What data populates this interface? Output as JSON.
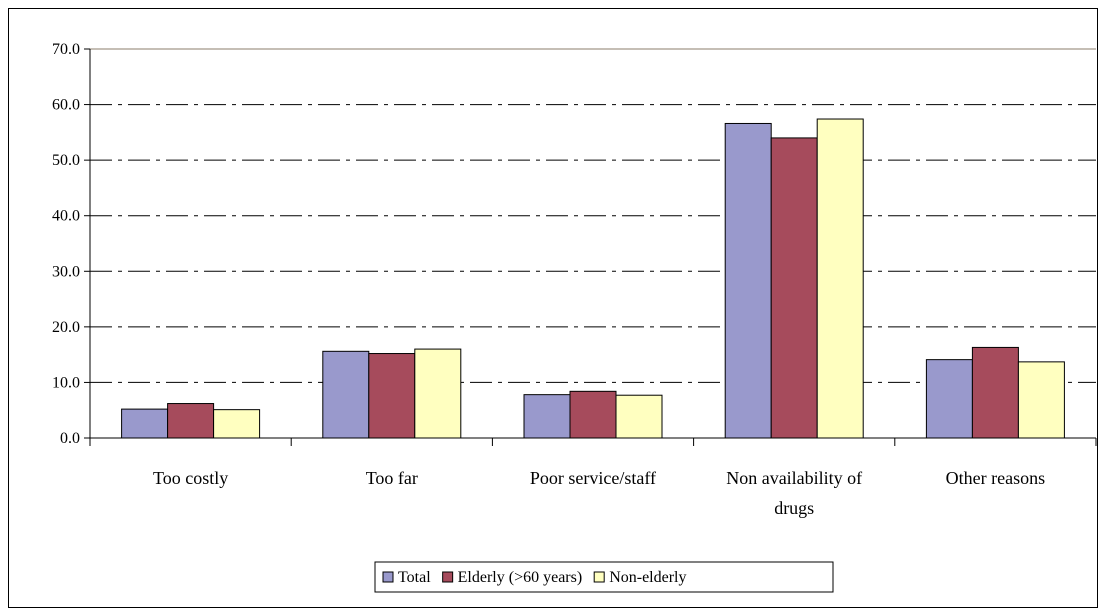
{
  "chart_data": {
    "type": "bar",
    "title": "",
    "xlabel": "",
    "ylabel": "",
    "categories": [
      [
        "Too costly"
      ],
      [
        "Too far"
      ],
      [
        "Poor service/staff"
      ],
      [
        "Non availability of",
        "drugs"
      ],
      [
        "Other reasons"
      ]
    ],
    "series": [
      {
        "name": "Total",
        "values": [
          5.2,
          15.6,
          7.8,
          56.6,
          14.1
        ],
        "color": "#9999cc"
      },
      {
        "name": "Elderly (>60 years)",
        "values": [
          6.2,
          15.2,
          8.4,
          54.0,
          16.3
        ],
        "color": "#a64b5c"
      },
      {
        "name": "Non-elderly",
        "values": [
          5.1,
          16.0,
          7.7,
          57.4,
          13.7
        ],
        "color": "#ffffc0"
      }
    ],
    "ylim": [
      0,
      70
    ],
    "yticks": [
      "0.0",
      "10.0",
      "20.0",
      "30.0",
      "40.0",
      "50.0",
      "60.0",
      "70.0"
    ],
    "ytick_values": [
      0,
      10,
      20,
      30,
      40,
      50,
      60,
      70
    ],
    "grid": "dash-dot horizontal",
    "legend_placement": "bottom-center"
  }
}
